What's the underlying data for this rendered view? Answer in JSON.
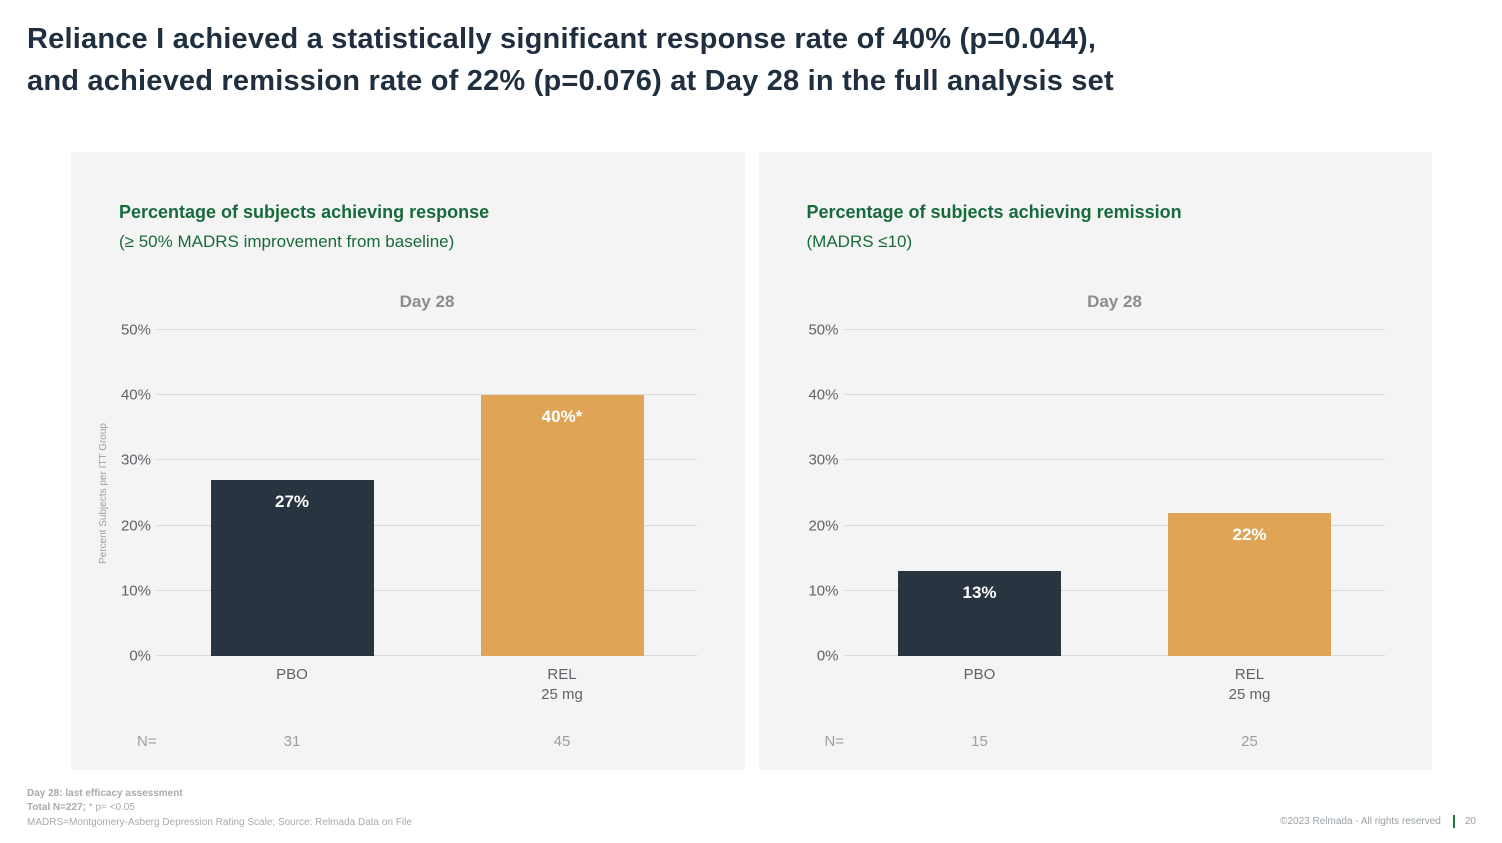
{
  "slide": {
    "title_line1": "Reliance I achieved a statistically significant response rate of 40% (p=0.044),",
    "title_line2": "and achieved remission rate of 22% (p=0.076) at Day 28 in the full analysis set"
  },
  "chart_data": [
    {
      "type": "bar",
      "title": "Percentage of subjects achieving response",
      "subtitle": "(≥ 50% MADRS improvement from baseline)",
      "inner_title": "Day 28",
      "ylabel": "Percent Subjects per ITT Group",
      "ylim": [
        0,
        50
      ],
      "ytick_step": 10,
      "ytick_suffix": "%",
      "grid": true,
      "legend": "none",
      "categories": [
        "PBO",
        "REL 25 mg"
      ],
      "category_lines": [
        [
          "PBO"
        ],
        [
          "REL",
          "25 mg"
        ]
      ],
      "values": [
        27,
        40
      ],
      "value_labels": [
        "27%",
        "40%*"
      ],
      "bar_colors": [
        "#28343f",
        "#dfa455"
      ],
      "n_row_label": "N=",
      "n_values": [
        "31",
        "45"
      ]
    },
    {
      "type": "bar",
      "title": "Percentage of subjects achieving remission",
      "subtitle": "(MADRS ≤10)",
      "inner_title": "Day 28",
      "ylabel": "",
      "ylim": [
        0,
        50
      ],
      "ytick_step": 10,
      "ytick_suffix": "%",
      "grid": true,
      "legend": "none",
      "categories": [
        "PBO",
        "REL 25 mg"
      ],
      "category_lines": [
        [
          "PBO"
        ],
        [
          "REL",
          "25 mg"
        ]
      ],
      "values": [
        13,
        22
      ],
      "value_labels": [
        "13%",
        "22%"
      ],
      "bar_colors": [
        "#28343f",
        "#dfa455"
      ],
      "n_row_label": "N=",
      "n_values": [
        "15",
        "25"
      ]
    }
  ],
  "footer": {
    "line1": "Day 28: last efficacy assessment",
    "line2_bold": "Total N=227;",
    "line2_rest": " * p= <0.05",
    "line3": "MADRS=Montgomery-Asberg Depression Rating Scale; Source: Relmada Data on File",
    "copyright": "©2023 Relmada - All rights reserved",
    "page_number": "20"
  },
  "colors": {
    "title_navy": "#1f2f3f",
    "heading_green": "#176b3a",
    "panel_bg": "#f4f4f4",
    "bar_dark": "#28343f",
    "bar_orange": "#dfa455",
    "gridline": "#d9d9d9",
    "accent_green": "#1a7a3c"
  }
}
